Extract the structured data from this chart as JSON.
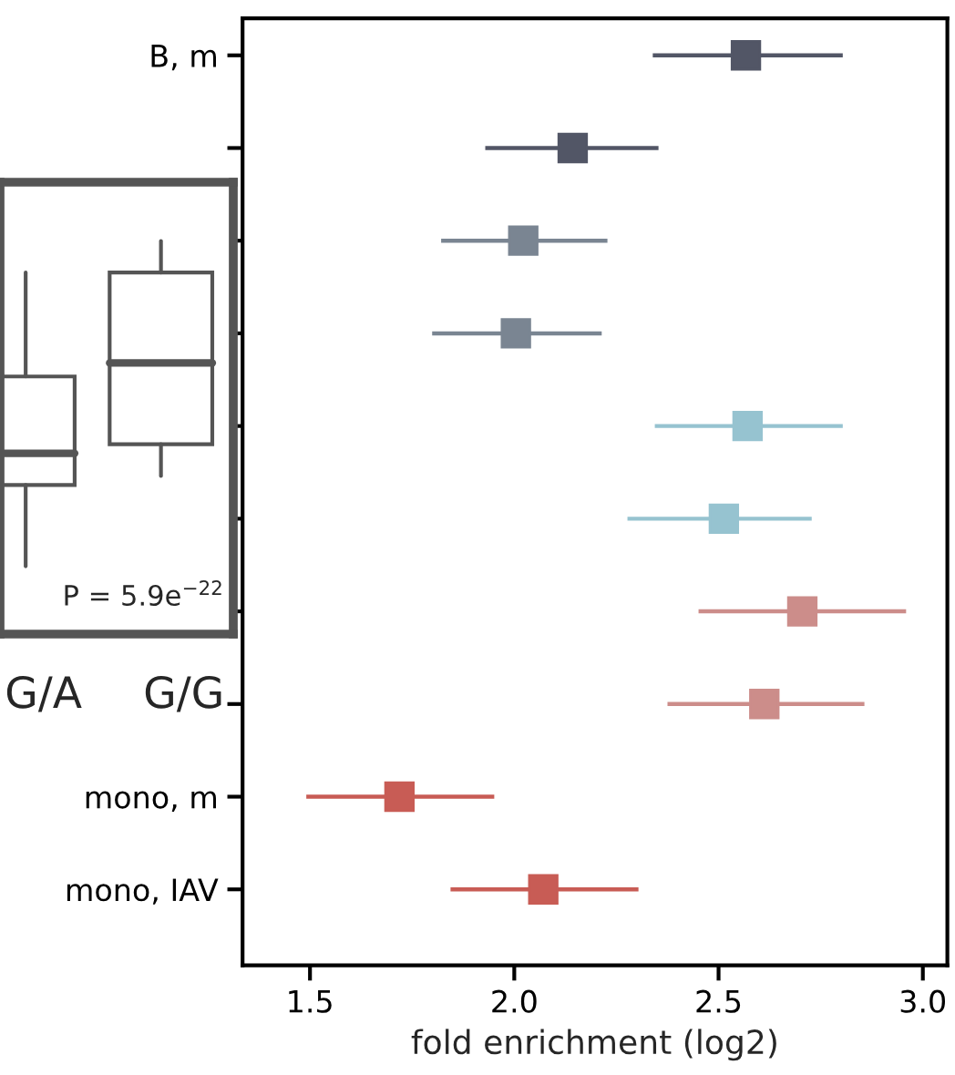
{
  "chart_data": {
    "type": "scatter",
    "orientation": "horizontal",
    "marker": "square",
    "xlabel": "fold enrichment (log2)",
    "categories": [
      "B, m",
      null,
      null,
      null,
      null,
      null,
      null,
      null,
      "mono, m",
      "mono, IAV"
    ],
    "values": [
      2.567,
      2.143,
      2.022,
      2.004,
      2.571,
      2.513,
      2.705,
      2.612,
      1.719,
      2.071
    ],
    "errors": [
      [
        2.339,
        2.804
      ],
      [
        1.929,
        2.353
      ],
      [
        1.821,
        2.228
      ],
      [
        1.799,
        2.214
      ],
      [
        2.344,
        2.804
      ],
      [
        2.277,
        2.728
      ],
      [
        2.451,
        2.959
      ],
      [
        2.375,
        2.857
      ],
      [
        1.491,
        1.951
      ],
      [
        1.844,
        2.304
      ]
    ],
    "colors": [
      "#525666",
      "#525666",
      "#7a8592",
      "#7a8592",
      "#96c3d0",
      "#96c3d0",
      "#cc8d8a",
      "#cc8d8a",
      "#c85c55",
      "#c85c55"
    ],
    "xlim": [
      1.335,
      3.06
    ],
    "xticks": [
      {
        "value": 1.5,
        "label": "1.5"
      },
      {
        "value": 2.0,
        "label": "2.0"
      },
      {
        "value": 2.5,
        "label": "2.5"
      },
      {
        "value": 3.0,
        "label": "3.0"
      }
    ],
    "grid": false,
    "annotations": [
      "P = 5.9e$^{−22}$",
      "G/A",
      "G/G"
    ]
  }
}
